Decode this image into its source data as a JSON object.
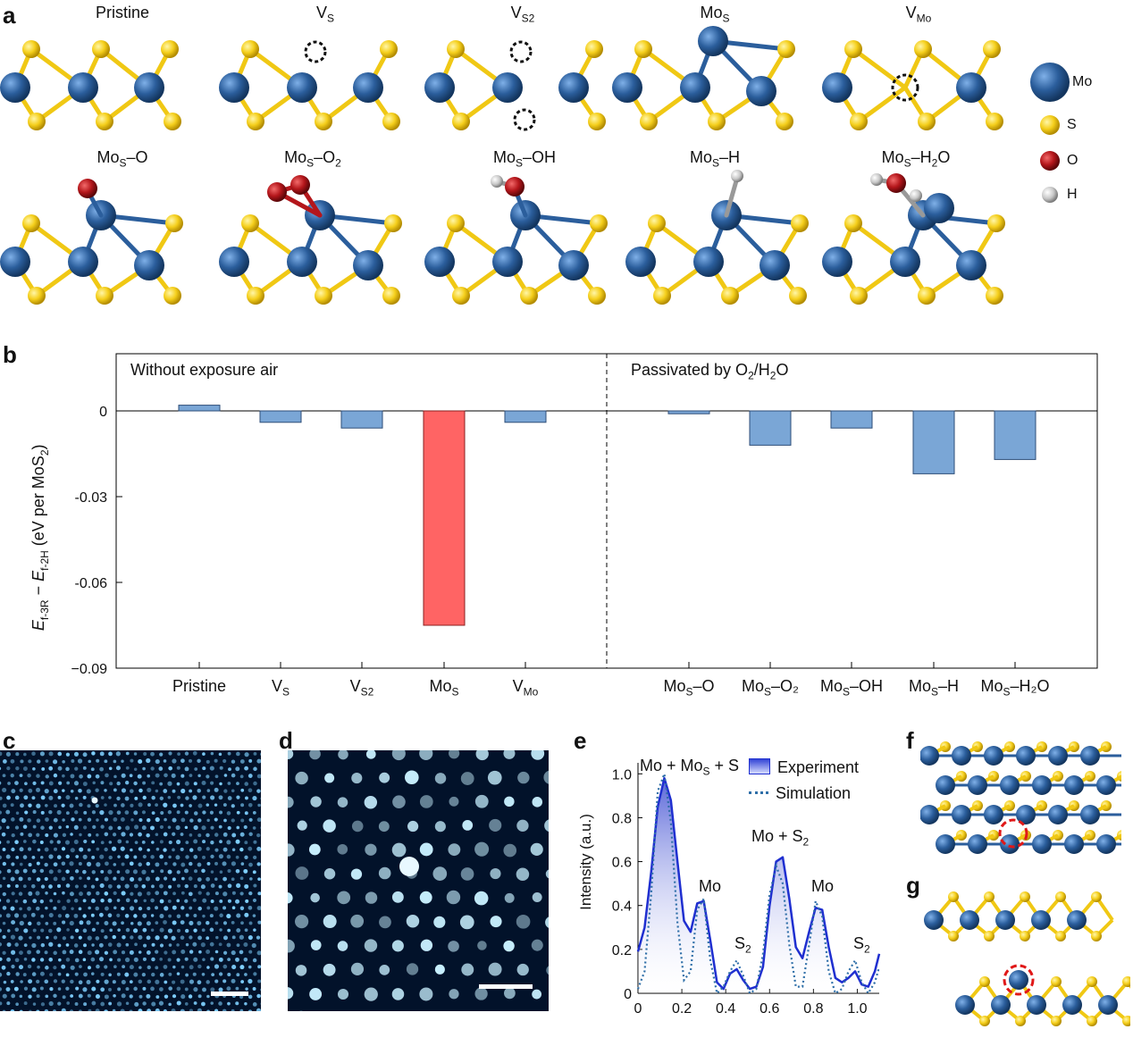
{
  "panels": {
    "a": "a",
    "b": "b",
    "c": "c",
    "d": "d",
    "e": "e",
    "f": "f",
    "g": "g"
  },
  "panel_a": {
    "row1": [
      {
        "base": "Pristine",
        "sub": ""
      },
      {
        "base": "V",
        "sub": "S"
      },
      {
        "base": "V",
        "sub": "S2"
      },
      {
        "base": "Mo",
        "sub": "S"
      },
      {
        "base": "V",
        "sub": "Mo"
      }
    ],
    "row2": [
      {
        "p1": "Mo",
        "s1": "S",
        "p2": "–O",
        "s2": "",
        "p3": ""
      },
      {
        "p1": "Mo",
        "s1": "S",
        "p2": "–O",
        "s2": "2",
        "p3": ""
      },
      {
        "p1": "Mo",
        "s1": "S",
        "p2": "–OH",
        "s2": "",
        "p3": ""
      },
      {
        "p1": "Mo",
        "s1": "S",
        "p2": "–H",
        "s2": "",
        "p3": ""
      },
      {
        "p1": "Mo",
        "s1": "S",
        "p2": "–H",
        "s2": "2",
        "p3": "O"
      }
    ],
    "legend": [
      {
        "label": "Mo",
        "color": "#2b5e9c"
      },
      {
        "label": "S",
        "color": "#f5cf1c"
      },
      {
        "label": "O",
        "color": "#b4161b"
      },
      {
        "label": "H",
        "color": "#c8c8c8"
      }
    ]
  },
  "chart_data": [
    {
      "type": "bar",
      "panel": "b",
      "ylabel": {
        "e1": "E",
        "s1": "f-3R",
        "mid": " − ",
        "e2": "E",
        "s2": "f-2H",
        "unit": " (eV per MoS",
        "unit_sub": "2",
        "close": ")"
      },
      "ylim": [
        -0.09,
        0.02
      ],
      "yticks": [
        "0",
        "-0.03",
        "-0.06",
        "−0.09"
      ],
      "ytick_values": [
        0,
        -0.03,
        -0.06,
        -0.09
      ],
      "regions": [
        {
          "text": "Without exposure air"
        },
        {
          "base": "Passivated by O",
          "s1": "2",
          "mid": "/H",
          "s2": "2",
          "end": "O"
        }
      ],
      "categories": [
        {
          "base": "Pristine",
          "sub": "",
          "tail": ""
        },
        {
          "base": "V",
          "sub": "S",
          "tail": ""
        },
        {
          "base": "V",
          "sub": "S2",
          "tail": ""
        },
        {
          "base": "Mo",
          "sub": "S",
          "tail": ""
        },
        {
          "base": "V",
          "sub": "Mo",
          "tail": ""
        },
        {
          "base": "Mo",
          "sub": "S",
          "tail": "–O"
        },
        {
          "base": "Mo",
          "sub": "S",
          "tail": "–O₂"
        },
        {
          "base": "Mo",
          "sub": "S",
          "tail": "–OH"
        },
        {
          "base": "Mo",
          "sub": "S",
          "tail": "–H"
        },
        {
          "base": "Mo",
          "sub": "S",
          "tail": "–H₂O"
        }
      ],
      "values": [
        0.002,
        -0.004,
        -0.006,
        -0.075,
        -0.004,
        -0.001,
        -0.012,
        -0.006,
        -0.022,
        -0.017
      ],
      "highlight_index": 3,
      "colors": {
        "bar": "#7aa6d6",
        "highlight": "#ff6464"
      }
    },
    {
      "type": "line",
      "panel": "e",
      "ylabel": "Intensity (a.u.)",
      "xlim": [
        0,
        1.1
      ],
      "ylim": [
        0,
        1.05
      ],
      "xticks": [
        "0",
        "0.2",
        "0.4",
        "0.6",
        "0.8",
        "1.0"
      ],
      "xtick_values": [
        0,
        0.2,
        0.4,
        0.6,
        0.8,
        1.0
      ],
      "yticks": [
        "0",
        "0.2",
        "0.4",
        "0.6",
        "0.8",
        "1.0"
      ],
      "ytick_values": [
        0,
        0.2,
        0.4,
        0.6,
        0.8,
        1.0
      ],
      "series": [
        {
          "name": "Experiment",
          "style": "solid",
          "color": "#1f2fd0",
          "x": [
            0,
            0.03,
            0.06,
            0.09,
            0.12,
            0.15,
            0.18,
            0.21,
            0.24,
            0.27,
            0.3,
            0.33,
            0.36,
            0.39,
            0.42,
            0.45,
            0.48,
            0.51,
            0.54,
            0.57,
            0.6,
            0.63,
            0.66,
            0.69,
            0.72,
            0.75,
            0.78,
            0.81,
            0.84,
            0.87,
            0.9,
            0.93,
            0.96,
            0.99,
            1.02,
            1.05,
            1.08,
            1.1
          ],
          "y": [
            0.19,
            0.3,
            0.55,
            0.85,
            0.98,
            0.88,
            0.6,
            0.33,
            0.28,
            0.41,
            0.42,
            0.24,
            0.05,
            0.02,
            0.09,
            0.11,
            0.06,
            0.02,
            0.03,
            0.12,
            0.4,
            0.6,
            0.62,
            0.43,
            0.21,
            0.16,
            0.28,
            0.39,
            0.38,
            0.21,
            0.07,
            0.05,
            0.07,
            0.1,
            0.04,
            0.03,
            0.1,
            0.18
          ]
        },
        {
          "name": "Simulation",
          "style": "dotted",
          "color": "#2f6fa8",
          "x": [
            0,
            0.03,
            0.06,
            0.09,
            0.12,
            0.15,
            0.18,
            0.21,
            0.24,
            0.27,
            0.3,
            0.33,
            0.36,
            0.39,
            0.42,
            0.45,
            0.48,
            0.51,
            0.54,
            0.57,
            0.6,
            0.63,
            0.66,
            0.69,
            0.72,
            0.75,
            0.78,
            0.81,
            0.84,
            0.87,
            0.9,
            0.93,
            0.96,
            0.99,
            1.02,
            1.05,
            1.08,
            1.1
          ],
          "y": [
            0.02,
            0.1,
            0.45,
            0.92,
            1.0,
            0.78,
            0.32,
            0.06,
            0.1,
            0.38,
            0.43,
            0.15,
            0.0,
            0.03,
            0.1,
            0.15,
            0.08,
            0.0,
            0.02,
            0.18,
            0.45,
            0.58,
            0.5,
            0.22,
            0.03,
            0.03,
            0.22,
            0.42,
            0.35,
            0.1,
            0.0,
            0.02,
            0.1,
            0.15,
            0.05,
            0.0,
            0.05,
            0.12
          ]
        }
      ],
      "annotations": [
        {
          "p1": "Mo + Mo",
          "s1": "S",
          "p2": " + S",
          "s2": ""
        },
        {
          "p1": "Mo + S",
          "s1": "",
          "p2": "",
          "s2": "2"
        },
        {
          "p1": "Mo",
          "s1": "",
          "p2": "",
          "s2": ""
        },
        {
          "p1": "Mo",
          "s1": "",
          "p2": "",
          "s2": ""
        },
        {
          "p1": "S",
          "s1": "",
          "p2": "",
          "s2": "2"
        },
        {
          "p1": "S",
          "s1": "",
          "p2": "",
          "s2": "2"
        }
      ]
    }
  ],
  "images": {
    "c": {
      "label": "STEM image, large area",
      "bg": "#02122a",
      "dot": "#7fd0ff"
    },
    "d": {
      "label": "STEM image, zoomed",
      "bg": "#02122a",
      "dot": "#c8f0ff"
    }
  }
}
